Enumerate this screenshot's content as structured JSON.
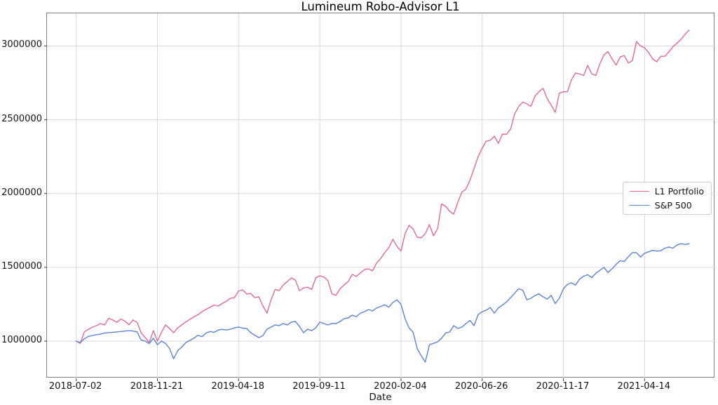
{
  "chart_data": {
    "type": "line",
    "title": "Lumineum Robo-Advisor L1",
    "xlabel": "Date",
    "ylabel": "",
    "grid": true,
    "legend_position": "center right",
    "x_tick_days": [
      0,
      100,
      200,
      300,
      400,
      500,
      600,
      700
    ],
    "x_tick_labels": [
      "2018-07-02",
      "2018-11-21",
      "2019-04-18",
      "2019-09-11",
      "2020-02-04",
      "2020-06-26",
      "2020-11-17",
      "2021-04-14"
    ],
    "y_ticks": [
      1000000,
      1500000,
      2000000,
      2500000,
      3000000
    ],
    "y_tick_labels": [
      "1000000",
      "1500000",
      "2000000",
      "2500000",
      "3000000"
    ],
    "xlim_days": [
      -36,
      787
    ],
    "ylim": [
      748000,
      3221000
    ],
    "x_days_start": 0,
    "x_days_step": 5,
    "series": [
      {
        "name": "L1 Portfolio",
        "color": "#e56b94",
        "values": [
          1000000,
          985000,
          1063000,
          1080000,
          1095000,
          1105000,
          1119000,
          1110000,
          1155000,
          1143000,
          1127000,
          1150000,
          1135000,
          1111000,
          1143000,
          1127000,
          1056000,
          1024000,
          992000,
          1071000,
          1000000,
          1060000,
          1110000,
          1085000,
          1057000,
          1090000,
          1110000,
          1130000,
          1148000,
          1165000,
          1180000,
          1200000,
          1215000,
          1230000,
          1245000,
          1238000,
          1255000,
          1270000,
          1290000,
          1295000,
          1340000,
          1347000,
          1319000,
          1323000,
          1295000,
          1300000,
          1238000,
          1190000,
          1280000,
          1350000,
          1342000,
          1381000,
          1404000,
          1428000,
          1414000,
          1342000,
          1360000,
          1366000,
          1350000,
          1428000,
          1443000,
          1435000,
          1410000,
          1320000,
          1310000,
          1355000,
          1381000,
          1404000,
          1452000,
          1438000,
          1462000,
          1485000,
          1490000,
          1476000,
          1530000,
          1560000,
          1600000,
          1633000,
          1690000,
          1642000,
          1610000,
          1728000,
          1785000,
          1760000,
          1704000,
          1700000,
          1728000,
          1790000,
          1714000,
          1760000,
          1930000,
          1913000,
          1880000,
          1860000,
          1940000,
          2009000,
          2030000,
          2090000,
          2170000,
          2250000,
          2308000,
          2356000,
          2360000,
          2389000,
          2340000,
          2403000,
          2400000,
          2437000,
          2540000,
          2590000,
          2620000,
          2608000,
          2590000,
          2660000,
          2690000,
          2713000,
          2645000,
          2600000,
          2550000,
          2680000,
          2690000,
          2690000,
          2770000,
          2817000,
          2810000,
          2800000,
          2868000,
          2810000,
          2800000,
          2880000,
          2940000,
          2962000,
          2912000,
          2870000,
          2925000,
          2935000,
          2885000,
          2900000,
          3030000,
          3000000,
          2988000,
          2955000,
          2912000,
          2893000,
          2930000,
          2930000,
          2960000,
          2995000,
          3020000,
          3045000,
          3080000,
          3107000
        ]
      },
      {
        "name": "S&P 500",
        "color": "#5b84d8",
        "values": [
          1000000,
          990000,
          1016000,
          1032000,
          1038000,
          1044000,
          1048000,
          1055000,
          1058000,
          1060000,
          1063000,
          1065000,
          1068000,
          1071000,
          1068000,
          1063000,
          1008000,
          1000000,
          984000,
          1020000,
          976000,
          1000000,
          985000,
          950000,
          880000,
          935000,
          960000,
          990000,
          1005000,
          1020000,
          1040000,
          1030000,
          1055000,
          1065000,
          1060000,
          1075000,
          1080000,
          1075000,
          1081000,
          1090000,
          1095000,
          1088000,
          1086000,
          1057000,
          1040000,
          1024000,
          1038000,
          1081000,
          1095000,
          1110000,
          1105000,
          1119000,
          1110000,
          1129000,
          1133000,
          1100000,
          1057000,
          1081000,
          1071000,
          1090000,
          1129000,
          1119000,
          1110000,
          1120000,
          1119000,
          1133000,
          1152000,
          1157000,
          1176000,
          1166000,
          1190000,
          1200000,
          1214000,
          1205000,
          1224000,
          1235000,
          1247000,
          1230000,
          1262000,
          1280000,
          1250000,
          1152000,
          1090000,
          1060000,
          950000,
          900000,
          858000,
          975000,
          985000,
          995000,
          1020000,
          1055000,
          1062000,
          1105000,
          1086000,
          1095000,
          1119000,
          1140000,
          1105000,
          1180000,
          1200000,
          1210000,
          1228000,
          1190000,
          1225000,
          1245000,
          1265000,
          1295000,
          1325000,
          1355000,
          1345000,
          1280000,
          1290000,
          1308000,
          1320000,
          1300000,
          1285000,
          1310000,
          1255000,
          1290000,
          1355000,
          1385000,
          1395000,
          1380000,
          1420000,
          1440000,
          1450000,
          1430000,
          1460000,
          1480000,
          1500000,
          1465000,
          1490000,
          1520000,
          1545000,
          1540000,
          1571000,
          1600000,
          1600000,
          1570000,
          1595000,
          1605000,
          1615000,
          1610000,
          1612000,
          1630000,
          1638000,
          1630000,
          1652000,
          1660000,
          1655000,
          1660000
        ]
      }
    ]
  }
}
